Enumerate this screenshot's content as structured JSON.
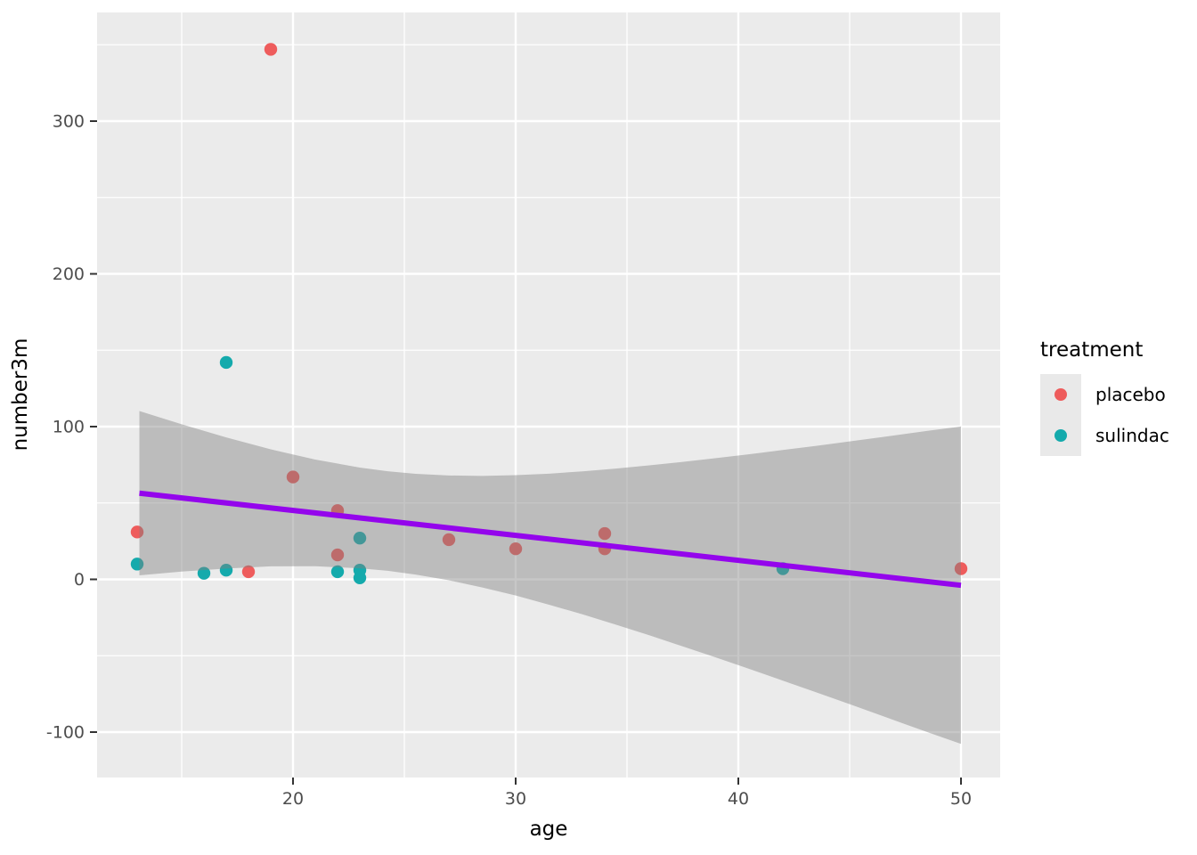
{
  "chart_data": {
    "type": "scatter",
    "title": "",
    "xlabel": "age",
    "ylabel": "number3m",
    "panel_bg": "#EBEBEB",
    "grid_color": "#FFFFFF",
    "tick_mark_color": "#333333",
    "tick_label_color": "#4D4D4D",
    "x_axis": {
      "ticks": [
        20,
        30,
        40,
        50
      ],
      "minor_ticks": [
        15,
        25,
        35,
        45
      ],
      "range": [
        11.2,
        51.76
      ]
    },
    "y_axis": {
      "ticks": [
        -100,
        0,
        100,
        200,
        300
      ],
      "minor_ticks": [
        -50,
        50,
        150,
        250,
        350
      ],
      "range": [
        -130,
        371
      ]
    },
    "legend": {
      "title": "treatment",
      "position": "right",
      "key_fill": "#E9E9E9",
      "items": [
        {
          "label": "placebo",
          "color": "#EE5C5C"
        },
        {
          "label": "sulindac",
          "color": "#14AAAC"
        }
      ]
    },
    "series": [
      {
        "name": "placebo",
        "color": "#EE5C5C",
        "points": [
          {
            "age": 19,
            "number3m": 347
          },
          {
            "age": 20,
            "number3m": 67
          },
          {
            "age": 13,
            "number3m": 31
          },
          {
            "age": 18,
            "number3m": 5
          },
          {
            "age": 22,
            "number3m": 45
          },
          {
            "age": 22,
            "number3m": 16
          },
          {
            "age": 27,
            "number3m": 26
          },
          {
            "age": 30,
            "number3m": 20
          },
          {
            "age": 34,
            "number3m": 30
          },
          {
            "age": 34,
            "number3m": 20
          },
          {
            "age": 50,
            "number3m": 7
          }
        ]
      },
      {
        "name": "sulindac",
        "color": "#14AAAC",
        "points": [
          {
            "age": 17,
            "number3m": 142
          },
          {
            "age": 13,
            "number3m": 10
          },
          {
            "age": 16,
            "number3m": 4
          },
          {
            "age": 17,
            "number3m": 6
          },
          {
            "age": 22,
            "number3m": 5
          },
          {
            "age": 23,
            "number3m": 27
          },
          {
            "age": 23,
            "number3m": 6
          },
          {
            "age": 23,
            "number3m": 1
          },
          {
            "age": 42,
            "number3m": 7
          }
        ]
      }
    ],
    "smooth": {
      "method": "lm",
      "line_color": "#9405EC",
      "band_fill": "rgba(128,128,128,0.44)",
      "line": {
        "x_start": 13.1,
        "y_start": 56.4,
        "x_end": 50,
        "y_end": -3.9
      },
      "band": [
        {
          "age": 13.1,
          "upper": 110.2,
          "lower": 2.6
        },
        {
          "age": 15,
          "upper": 101.5,
          "lower": 5.1
        },
        {
          "age": 17,
          "upper": 92.9,
          "lower": 7.1
        },
        {
          "age": 19,
          "upper": 85.1,
          "lower": 8.5
        },
        {
          "age": 21,
          "upper": 78.4,
          "lower": 8.6
        },
        {
          "age": 23,
          "upper": 73.2,
          "lower": 7.2
        },
        {
          "age": 24.25,
          "upper": 70.8,
          "lower": 5.6
        },
        {
          "age": 25.5,
          "upper": 69.1,
          "lower": 3.1
        },
        {
          "age": 27,
          "upper": 68.0,
          "lower": -0.6
        },
        {
          "age": 28.5,
          "upper": 67.7,
          "lower": -5.3
        },
        {
          "age": 30,
          "upper": 68.2,
          "lower": -10.6
        },
        {
          "age": 31.5,
          "upper": 69.2,
          "lower": -16.6
        },
        {
          "age": 33,
          "upper": 70.7,
          "lower": -22.9
        },
        {
          "age": 34.5,
          "upper": 72.5,
          "lower": -29.7
        },
        {
          "age": 36,
          "upper": 74.6,
          "lower": -36.6
        },
        {
          "age": 37.5,
          "upper": 76.9,
          "lower": -43.9
        },
        {
          "age": 39,
          "upper": 79.4,
          "lower": -51.2
        },
        {
          "age": 40.5,
          "upper": 81.9,
          "lower": -58.7
        },
        {
          "age": 42,
          "upper": 84.7,
          "lower": -66.3
        },
        {
          "age": 43.5,
          "upper": 87.4,
          "lower": -74.0
        },
        {
          "age": 45,
          "upper": 90.3,
          "lower": -81.7
        },
        {
          "age": 46.5,
          "upper": 93.2,
          "lower": -89.6
        },
        {
          "age": 48.5,
          "upper": 97.2,
          "lower": -100.1
        },
        {
          "age": 50,
          "upper": 100.1,
          "lower": -107.7
        }
      ]
    }
  }
}
